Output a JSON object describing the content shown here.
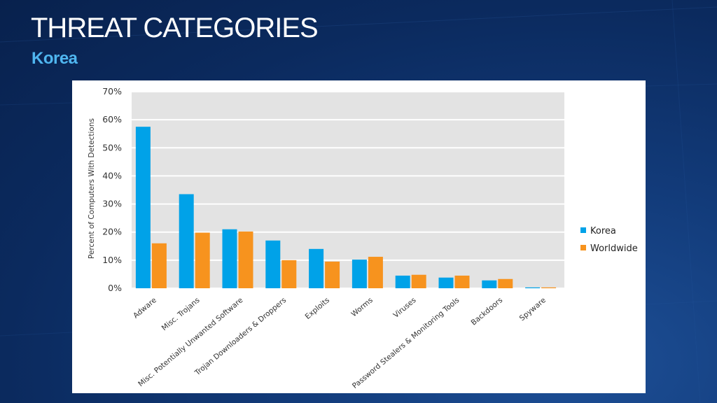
{
  "slide": {
    "title": "THREAT CATEGORIES",
    "subtitle": "Korea"
  },
  "colors": {
    "korea": "#00a2e8",
    "worldwide": "#f7931e",
    "plot_bg": "#e3e3e3"
  },
  "chart_data": {
    "type": "bar",
    "title": "",
    "xlabel": "",
    "ylabel": "Percent of Computers With Detections",
    "ylim": [
      0,
      70
    ],
    "yticks": [
      "0%",
      "10%",
      "20%",
      "30%",
      "40%",
      "50%",
      "60%",
      "70%"
    ],
    "grid": true,
    "legend_position": "right",
    "categories": [
      "Adware",
      "Misc. Trojans",
      "Misc. Potentially Unwanted Software",
      "Trojan Downloaders & Droppers",
      "Exploits",
      "Worms",
      "Viruses",
      "Password Stealers & Monitoring Tools",
      "Backdoors",
      "Spyware"
    ],
    "series": [
      {
        "name": "Korea",
        "values": [
          57.5,
          33.5,
          21,
          17,
          14,
          10.2,
          4.5,
          3.8,
          2.8,
          0.3
        ]
      },
      {
        "name": "Worldwide",
        "values": [
          16,
          19.8,
          20.2,
          10,
          9.5,
          11.2,
          4.8,
          4.5,
          3.3,
          0.3
        ]
      }
    ]
  }
}
